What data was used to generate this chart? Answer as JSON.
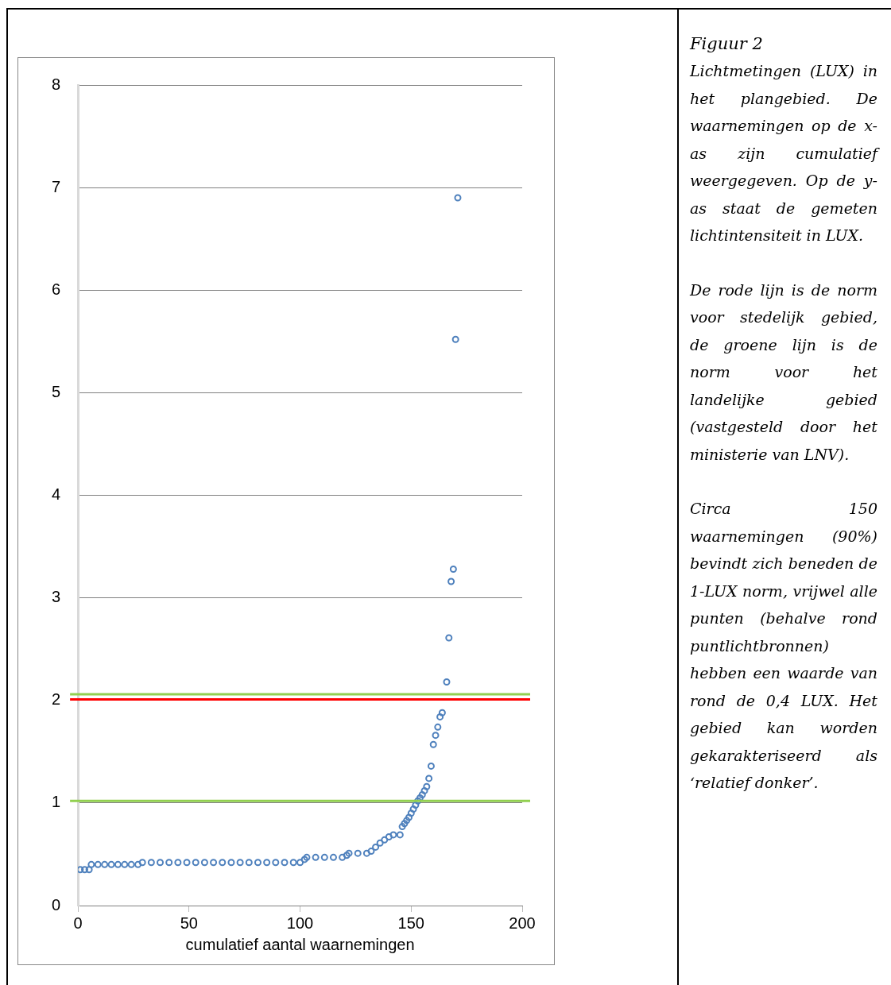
{
  "chart_data": {
    "type": "scatter",
    "title": "Figuur 2",
    "xlabel": "cumulatief aantal waarnemingen",
    "xlim": [
      0,
      200
    ],
    "xticks": [
      0,
      50,
      100,
      150,
      200
    ],
    "ylim": [
      0,
      8
    ],
    "yticks": [
      0,
      1,
      2,
      3,
      4,
      5,
      6,
      7,
      8
    ],
    "grid": "y",
    "marker": "circle",
    "series": [
      {
        "color": "#4f81bd",
        "x": [
          1,
          3,
          5,
          6,
          9,
          12,
          15,
          18,
          21,
          24,
          27,
          29,
          33,
          37,
          41,
          45,
          49,
          53,
          57,
          61,
          65,
          69,
          73,
          77,
          81,
          85,
          89,
          93,
          97,
          100,
          102,
          103,
          107,
          111,
          115,
          119,
          121,
          122,
          126,
          130,
          132,
          134,
          136,
          138,
          140,
          142,
          145,
          146,
          147,
          148,
          149,
          150,
          151,
          152,
          153,
          154,
          155,
          156,
          157,
          158,
          159,
          160,
          161,
          162,
          163,
          164,
          166,
          167,
          168,
          169,
          170,
          171
        ],
        "values": [
          0.35,
          0.35,
          0.35,
          0.4,
          0.4,
          0.4,
          0.4,
          0.4,
          0.4,
          0.4,
          0.4,
          0.42,
          0.42,
          0.42,
          0.42,
          0.42,
          0.42,
          0.42,
          0.42,
          0.42,
          0.42,
          0.42,
          0.42,
          0.42,
          0.42,
          0.42,
          0.42,
          0.42,
          0.42,
          0.42,
          0.45,
          0.47,
          0.47,
          0.47,
          0.47,
          0.47,
          0.49,
          0.51,
          0.51,
          0.51,
          0.53,
          0.57,
          0.61,
          0.64,
          0.67,
          0.69,
          0.69,
          0.77,
          0.8,
          0.83,
          0.86,
          0.9,
          0.94,
          0.98,
          1.02,
          1.05,
          1.08,
          1.12,
          1.16,
          1.24,
          1.36,
          1.57,
          1.66,
          1.74,
          1.84,
          1.88,
          2.18,
          2.61,
          3.16,
          3.28,
          5.52,
          6.9
        ]
      }
    ],
    "ref_lines": [
      {
        "axis": "y",
        "value": 2.01,
        "color": "#ff0000"
      },
      {
        "axis": "y",
        "value": 1.02,
        "color": "#92d050"
      },
      {
        "axis": "y",
        "value": 2.06,
        "color": "#92d050"
      }
    ],
    "annotations": [
      "Lichtmetingen (LUX) in het plangebied. De waarnemingen op de x-as zijn cumulatief weergegeven. Op de y-as staat de gemeten lichtintensiteit in LUX.",
      "De rode lijn is de norm voor stedelijk gebied, de groene lijn is de norm voor het landelijke gebied (vastgesteld door het ministerie van LNV).",
      "Circa 150 waarnemingen (90%) bevindt zich beneden de 1-LUX norm, vrijwel alle punten (behalve rond puntlichtbronnen) hebben een waarde van rond de 0,4 LUX. Het gebied kan worden gekarakteriseerd als ‘relatief donker’."
    ]
  }
}
